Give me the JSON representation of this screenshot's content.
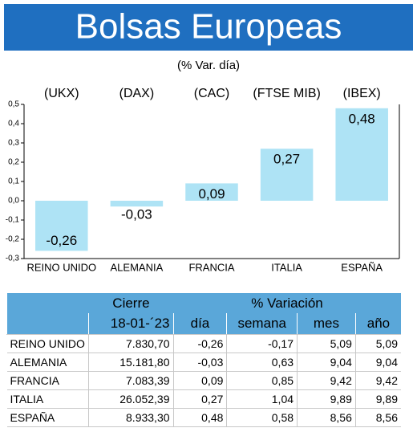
{
  "chart_data": {
    "type": "bar",
    "title": "Bolsas Europeas",
    "subtitle": "(% Var. día)",
    "indices": [
      "(UKX)",
      "(DAX)",
      "(CAC)",
      "(FTSE MIB)",
      "(IBEX)"
    ],
    "categories": [
      "REINO UNIDO",
      "ALEMANIA",
      "FRANCIA",
      "ITALIA",
      "ESPAÑA"
    ],
    "values": [
      -0.26,
      -0.03,
      0.09,
      0.27,
      0.48
    ],
    "value_labels": [
      "-0,26",
      "-0,03",
      "0,09",
      "0,27",
      "0,48"
    ],
    "color": "#aee3f5",
    "ylim": [
      -0.3,
      0.5
    ],
    "yticks": [
      {
        "value": 0.5,
        "label": "0,5"
      },
      {
        "value": 0.4,
        "label": "0,4"
      },
      {
        "value": 0.3,
        "label": "0,3"
      },
      {
        "value": 0.2,
        "label": "0,2"
      },
      {
        "value": 0.1,
        "label": "0,1"
      },
      {
        "value": 0,
        "label": "0,0"
      },
      {
        "value": -0.1,
        "label": "-0,1"
      },
      {
        "value": -0.2,
        "label": "-0,2"
      },
      {
        "value": -0.3,
        "label": "-0,3"
      }
    ]
  },
  "table": {
    "header": [
      "Cierre",
      "% Variación"
    ],
    "subheader": [
      "18-01-´23",
      "día",
      "semana",
      "mes",
      "año"
    ],
    "rows": [
      [
        "REINO UNIDO",
        "7.830,70",
        "-0,26",
        "-0,17",
        "5,09",
        "5,09"
      ],
      [
        "ALEMANIA",
        "15.181,80",
        "-0,03",
        "0,63",
        "9,04",
        "9,04"
      ],
      [
        "FRANCIA",
        "7.083,39",
        "0,09",
        "0,85",
        "9,42",
        "9,42"
      ],
      [
        "ITALIA",
        "26.052,39",
        "0,27",
        "1,04",
        "9,89",
        "9,89"
      ],
      [
        "ESPAÑA",
        "8.933,30",
        "0,48",
        "0,58",
        "8,56",
        "8,56"
      ]
    ]
  }
}
